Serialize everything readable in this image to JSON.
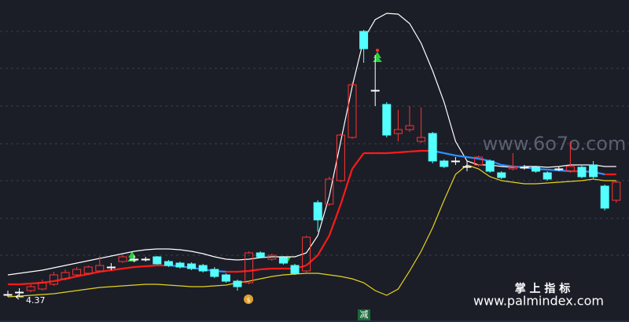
{
  "chart_data": {
    "type": "candlestick",
    "ylim": [
      4.05,
      8.15
    ],
    "up_color": "#ff3232",
    "down_color": "#54ffff",
    "flat_color": "#ffffff",
    "open": [
      4.4,
      4.43,
      4.45,
      4.47,
      4.53,
      4.6,
      4.65,
      4.67,
      4.7,
      4.75,
      4.82,
      4.85,
      4.85,
      4.88,
      4.82,
      4.8,
      4.79,
      4.77,
      4.72,
      4.65,
      4.57,
      4.55,
      4.93,
      4.85,
      4.87,
      4.77,
      4.7,
      5.57,
      5.55,
      5.85,
      6.4,
      7.75,
      7.0,
      6.82,
      6.45,
      6.5,
      6.35,
      6.45,
      6.1,
      6.1,
      6.03,
      6.05,
      6.1,
      5.95,
      6.0,
      6.02,
      6.02,
      5.95,
      6.0,
      5.97,
      6.02,
      6.05,
      5.78,
      5.6
    ],
    "close": [
      4.4,
      4.43,
      4.5,
      4.55,
      4.65,
      4.68,
      4.72,
      4.75,
      4.77,
      4.75,
      4.88,
      4.85,
      4.85,
      4.79,
      4.77,
      4.75,
      4.73,
      4.7,
      4.63,
      4.57,
      4.5,
      4.93,
      4.88,
      4.9,
      4.8,
      4.67,
      5.13,
      5.35,
      5.87,
      6.43,
      7.07,
      7.53,
      7.0,
      6.43,
      6.5,
      6.55,
      6.4,
      6.1,
      6.03,
      6.1,
      6.03,
      6.15,
      5.97,
      5.89,
      6.03,
      6.02,
      5.97,
      5.87,
      6.0,
      6.03,
      5.9,
      5.9,
      5.5,
      5.83
    ],
    "high": [
      4.45,
      4.48,
      4.53,
      4.59,
      4.69,
      4.72,
      4.75,
      4.77,
      4.89,
      4.8,
      4.9,
      4.9,
      4.88,
      4.89,
      4.84,
      4.82,
      4.81,
      4.79,
      4.75,
      4.67,
      4.59,
      4.95,
      4.95,
      4.92,
      4.89,
      4.79,
      5.15,
      5.6,
      5.9,
      6.45,
      7.1,
      7.77,
      7.45,
      6.85,
      6.75,
      6.8,
      6.78,
      6.47,
      6.12,
      6.15,
      6.1,
      6.17,
      6.12,
      5.97,
      6.2,
      6.05,
      6.04,
      5.97,
      6.03,
      6.35,
      6.04,
      6.1,
      5.8,
      5.85
    ],
    "low": [
      4.37,
      4.38,
      4.43,
      4.45,
      4.51,
      4.58,
      4.63,
      4.65,
      4.68,
      4.71,
      4.8,
      4.81,
      4.82,
      4.78,
      4.75,
      4.73,
      4.71,
      4.68,
      4.61,
      4.55,
      4.45,
      4.53,
      4.86,
      4.83,
      4.78,
      4.65,
      4.68,
      5.2,
      5.53,
      5.83,
      6.38,
      7.35,
      6.8,
      6.4,
      6.35,
      6.47,
      6.33,
      6.07,
      6.01,
      6.05,
      5.97,
      6.03,
      5.95,
      5.87,
      5.98,
      5.99,
      5.95,
      5.85,
      5.97,
      5.95,
      5.88,
      5.88,
      5.47,
      5.57
    ],
    "upper": {
      "color": "#ffffff",
      "values": [
        4.65,
        4.67,
        4.69,
        4.71,
        4.74,
        4.77,
        4.8,
        4.83,
        4.86,
        4.89,
        4.92,
        4.95,
        4.97,
        4.98,
        4.98,
        4.97,
        4.95,
        4.92,
        4.88,
        4.85,
        4.84,
        4.85,
        4.87,
        4.88,
        4.88,
        4.88,
        4.93,
        5.15,
        5.65,
        6.35,
        7.05,
        7.65,
        7.9,
        7.98,
        7.97,
        7.85,
        7.6,
        7.25,
        6.85,
        6.35,
        6.1,
        6.05,
        6.05,
        6.03,
        6.02,
        6.03,
        6.03,
        6.02,
        6.03,
        6.05,
        6.05,
        6.05,
        6.03,
        6.03
      ]
    },
    "middle": {
      "rise_color": "#ff1a1a",
      "fall_color": "#2e8fff",
      "values": [
        4.53,
        4.53,
        4.54,
        4.55,
        4.57,
        4.6,
        4.63,
        4.66,
        4.69,
        4.71,
        4.73,
        4.75,
        4.76,
        4.77,
        4.77,
        4.76,
        4.74,
        4.72,
        4.7,
        4.69,
        4.69,
        4.7,
        4.72,
        4.73,
        4.73,
        4.73,
        4.77,
        4.9,
        5.15,
        5.55,
        6.0,
        6.2,
        6.2,
        6.2,
        6.21,
        6.22,
        6.23,
        6.23,
        6.2,
        6.17,
        6.15,
        6.13,
        6.1,
        6.05,
        6.03,
        6.02,
        6.0,
        5.99,
        5.98,
        5.97,
        5.97,
        5.96,
        5.93,
        5.93
      ]
    },
    "lower": {
      "color": "#e6d21e",
      "values": [
        4.37,
        4.38,
        4.39,
        4.4,
        4.41,
        4.43,
        4.45,
        4.47,
        4.49,
        4.5,
        4.51,
        4.52,
        4.53,
        4.53,
        4.52,
        4.51,
        4.5,
        4.5,
        4.51,
        4.52,
        4.55,
        4.57,
        4.6,
        4.63,
        4.65,
        4.66,
        4.67,
        4.67,
        4.65,
        4.63,
        4.6,
        4.55,
        4.45,
        4.39,
        4.47,
        4.7,
        4.95,
        5.25,
        5.6,
        5.93,
        6.05,
        6.0,
        5.9,
        5.85,
        5.83,
        5.81,
        5.81,
        5.82,
        5.83,
        5.84,
        5.85,
        5.87,
        5.85,
        5.85
      ]
    },
    "watermarks": [
      "www.6o7o.com",
      "掌 上 指 标",
      "www.palmindex.com"
    ],
    "bottom_label": "减"
  }
}
